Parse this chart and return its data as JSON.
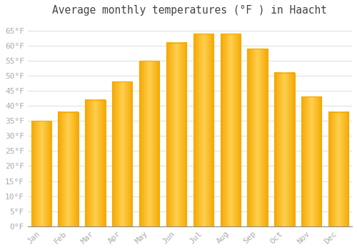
{
  "title": "Average monthly temperatures (°F ) in Haacht",
  "months": [
    "Jan",
    "Feb",
    "Mar",
    "Apr",
    "May",
    "Jun",
    "Jul",
    "Aug",
    "Sep",
    "Oct",
    "Nov",
    "Dec"
  ],
  "values": [
    35,
    38,
    42,
    48,
    55,
    61,
    64,
    64,
    59,
    51,
    43,
    38
  ],
  "bar_color_center": "#FFD050",
  "bar_color_edge": "#F5A800",
  "background_color": "#FFFFFF",
  "plot_bg_color": "#FFFFFF",
  "grid_color": "#DDDDDD",
  "ylim": [
    0,
    68
  ],
  "yticks": [
    0,
    5,
    10,
    15,
    20,
    25,
    30,
    35,
    40,
    45,
    50,
    55,
    60,
    65
  ],
  "title_fontsize": 10.5,
  "tick_fontsize": 8,
  "tick_color": "#AAAAAA",
  "title_color": "#444444",
  "font_family": "monospace",
  "bar_width": 0.75
}
